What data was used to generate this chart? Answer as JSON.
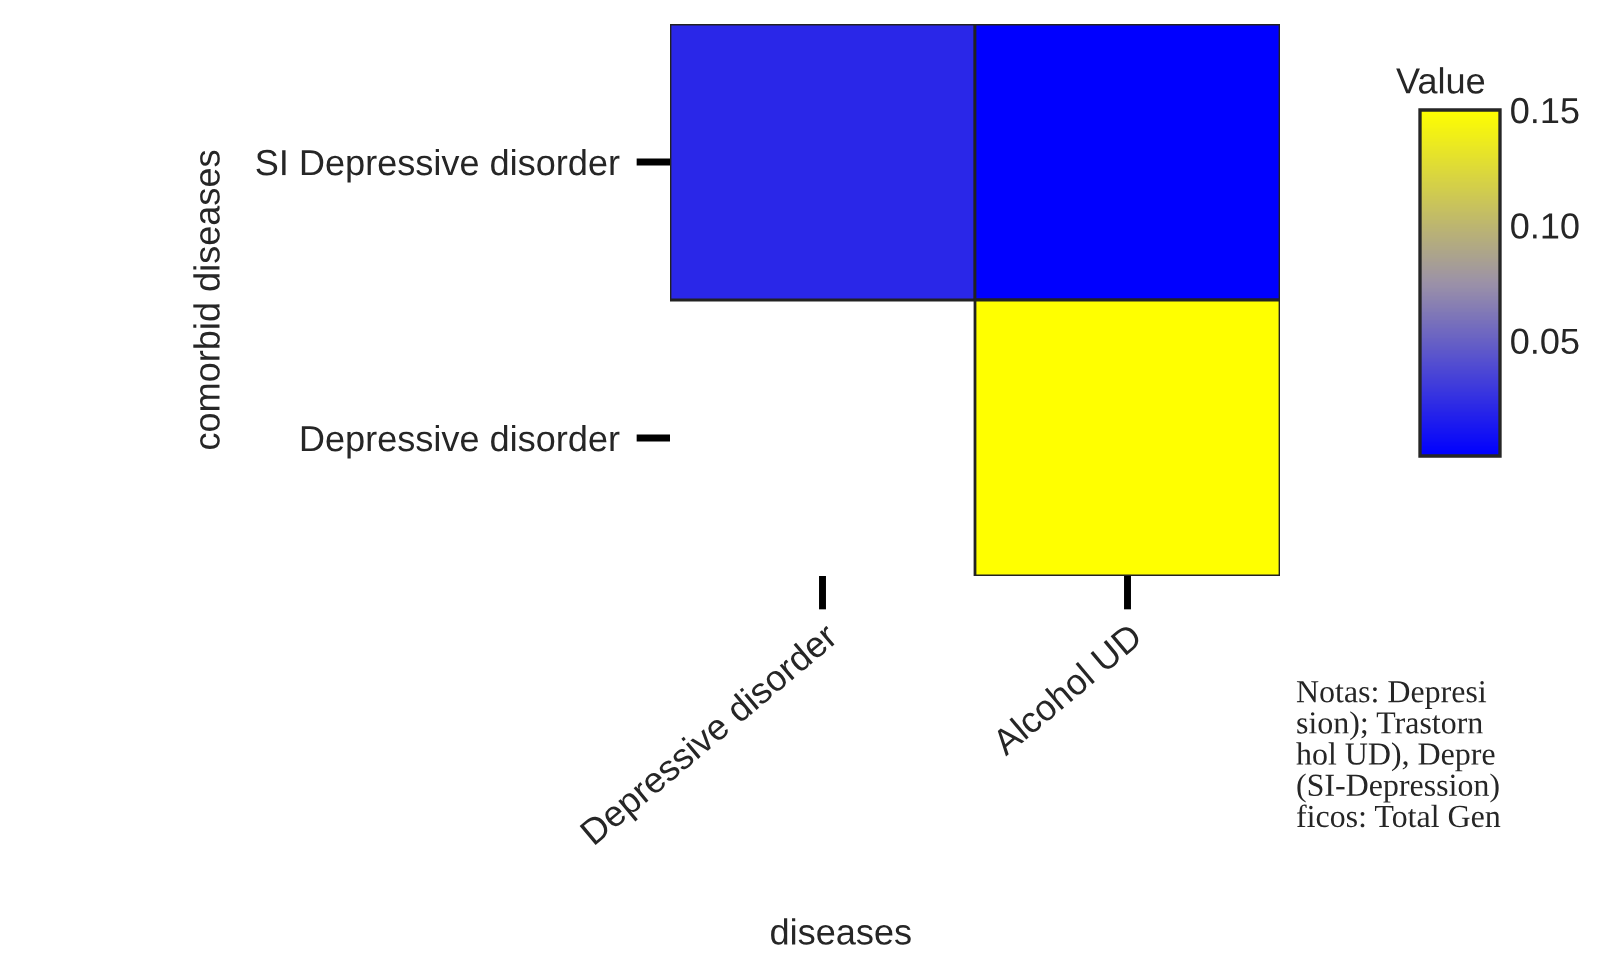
{
  "chart_data": {
    "type": "heatmap",
    "xlabel": "diseases",
    "ylabel": "comorbid diseases",
    "clabel": "Value",
    "categories": [
      "Depressive disorder",
      "Alcohol UD"
    ],
    "y_categories": [
      "SI Depressive disorder",
      "Depressive disorder"
    ],
    "cells": [
      [
        0.02,
        0.0
      ],
      [
        null,
        0.15
      ]
    ],
    "clim": [
      0,
      0.15
    ],
    "cticks": [
      0.05,
      {
        "value": 0.1,
        "label": "0.10"
      },
      0.15
    ],
    "annotations": [
      "Notas: Depresi\nsion); Trastorn\nhol UD), Depre\n(SI-Depression)\nficos: Total Gen"
    ]
  }
}
